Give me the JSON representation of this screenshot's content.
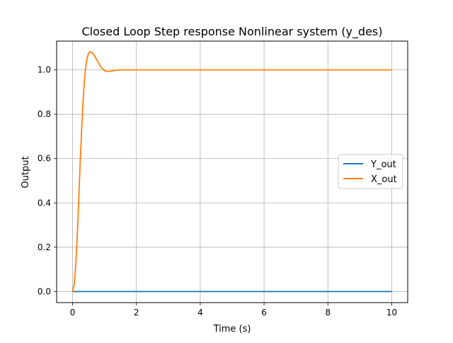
{
  "chart_data": {
    "type": "line",
    "title": "Closed Loop Step response Nonlinear system (y_des)",
    "xlabel": "Time (s)",
    "ylabel": "Output",
    "xlim": [
      -0.5,
      10.5
    ],
    "ylim": [
      -0.05,
      1.13
    ],
    "x_ticks": [
      0,
      2,
      4,
      6,
      8,
      10
    ],
    "x_tick_labels": [
      "0",
      "2",
      "4",
      "6",
      "8",
      "10"
    ],
    "y_ticks": [
      0.0,
      0.2,
      0.4,
      0.6,
      0.8,
      1.0
    ],
    "y_tick_labels": [
      "0.0",
      "0.2",
      "0.4",
      "0.6",
      "0.8",
      "1.0"
    ],
    "grid": true,
    "legend_position": "center-right",
    "series": [
      {
        "name": "Y_out",
        "color": "#1f77b4",
        "x": [
          0,
          10
        ],
        "y": [
          0.0,
          0.0
        ]
      },
      {
        "name": "X_out",
        "color": "#ff7f0e",
        "x": [
          0,
          0.05,
          0.1,
          0.15,
          0.2,
          0.25,
          0.3,
          0.35,
          0.4,
          0.45,
          0.5,
          0.55,
          0.6,
          0.65,
          0.7,
          0.8,
          0.9,
          1.0,
          1.1,
          1.2,
          1.3,
          1.4,
          1.5,
          1.7,
          2.0,
          2.5,
          3,
          4,
          5,
          6,
          7,
          8,
          9,
          10
        ],
        "y": [
          0.0,
          0.03,
          0.12,
          0.26,
          0.44,
          0.62,
          0.78,
          0.91,
          1.0,
          1.05,
          1.075,
          1.082,
          1.08,
          1.072,
          1.06,
          1.035,
          1.01,
          0.997,
          0.993,
          0.994,
          0.997,
          0.999,
          1.0,
          1.0,
          1.0,
          1.0,
          1.0,
          1.0,
          1.0,
          1.0,
          1.0,
          1.0,
          1.0,
          1.0
        ]
      }
    ]
  }
}
